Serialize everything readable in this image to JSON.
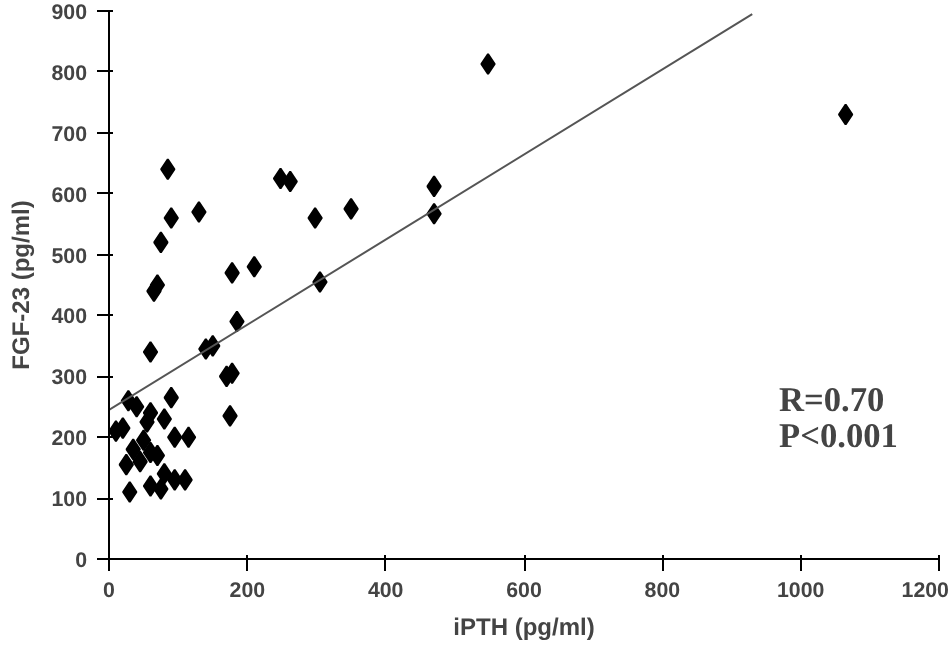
{
  "chart_data": {
    "type": "scatter",
    "xlabel": "iPTH (pg/ml)",
    "ylabel": "FGF-23 (pg/ml)",
    "xlim": [
      0,
      1200
    ],
    "ylim": [
      0,
      900
    ],
    "xticks": [
      0,
      200,
      400,
      600,
      800,
      1000,
      1200
    ],
    "yticks": [
      0,
      100,
      200,
      300,
      400,
      500,
      600,
      700,
      800,
      900
    ],
    "grid": false,
    "marker": "diamond",
    "annotations": [
      "R=0.70",
      "P<0.001"
    ],
    "series": [
      {
        "color": "#000000",
        "x": [
          548,
          1065,
          470,
          470,
          350,
          305,
          298,
          262,
          248,
          210,
          185,
          178,
          178,
          175,
          170,
          150,
          140,
          130,
          115,
          110,
          90,
          85,
          80,
          75,
          70,
          65,
          60,
          90,
          95,
          60,
          55,
          40,
          35,
          28,
          20,
          10,
          25,
          30,
          45,
          50,
          70,
          80,
          60,
          95,
          75,
          60
        ],
        "values": [
          813,
          730,
          612,
          567,
          575,
          455,
          560,
          620,
          625,
          480,
          390,
          305,
          470,
          235,
          300,
          350,
          345,
          570,
          200,
          130,
          560,
          640,
          230,
          520,
          450,
          440,
          340,
          265,
          200,
          240,
          225,
          250,
          180,
          260,
          215,
          210,
          155,
          110,
          160,
          195,
          170,
          140,
          120,
          130,
          115,
          175
        ]
      },
      {
        "type": "line",
        "color": "#555555",
        "x": [
          0,
          930
        ],
        "values": [
          245,
          895
        ],
        "marker": "none"
      }
    ]
  }
}
